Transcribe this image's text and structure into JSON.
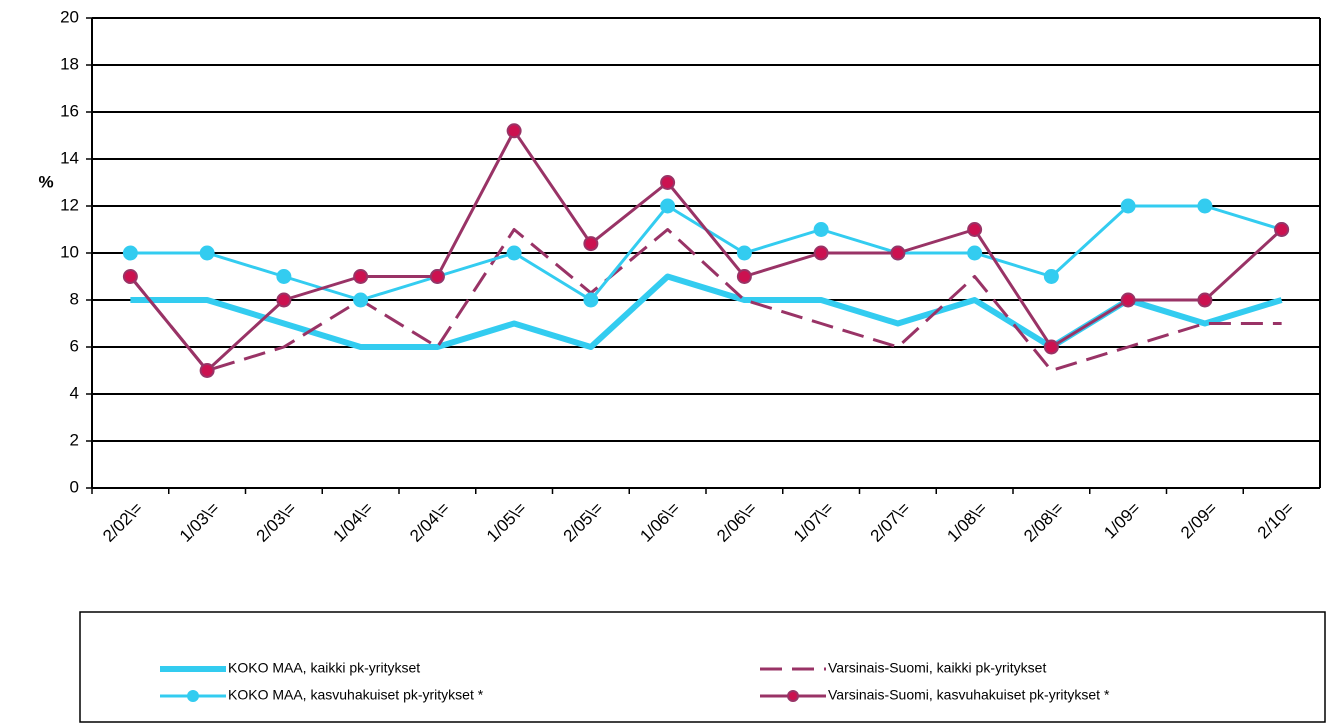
{
  "chart_data": {
    "type": "line",
    "y_label": "%",
    "categories": [
      "2/02\\=",
      "1/03\\=",
      "2/03\\=",
      "1/04\\=",
      "2/04\\=",
      "1/05\\=",
      "2/05\\=",
      "1/06\\=",
      "2/06\\=",
      "1/07\\=",
      "2/07\\=",
      "1/08\\=",
      "2/08\\=",
      "1/09=",
      "2/09=",
      "2/10="
    ],
    "series": [
      {
        "name": "KOKO MAA,  kaikki pk-yritykset",
        "color": "#33ccf0",
        "width": 6,
        "dash": false,
        "marker": false,
        "values": [
          8,
          8,
          7,
          6,
          6,
          7,
          6,
          9,
          8,
          8,
          7,
          8,
          6,
          8,
          7,
          8
        ]
      },
      {
        "name": "Varsinais-Suomi, kaikki pk-yritykset",
        "color": "#993366",
        "width": 3,
        "dash": true,
        "marker": false,
        "values": [
          9,
          5,
          6,
          8,
          6,
          11,
          8.3,
          11,
          8,
          7,
          6,
          9,
          5,
          6,
          7,
          7
        ]
      },
      {
        "name": "KOKO MAA,  kasvuhakuiset pk-yritykset *",
        "color": "#33ccf0",
        "width": 3,
        "dash": false,
        "marker": true,
        "marker_color": "#33ccf0",
        "values": [
          10,
          10,
          9,
          8,
          9,
          10,
          8,
          12,
          10,
          11,
          10,
          10,
          9,
          12,
          12,
          11
        ]
      },
      {
        "name": "Varsinais-Suomi, kasvuhakuiset pk-yritykset *",
        "color": "#993366",
        "width": 3,
        "dash": false,
        "marker": true,
        "marker_color": "#cc1150",
        "values": [
          9,
          5,
          8,
          9,
          9,
          15.2,
          10.4,
          13,
          9,
          10,
          10,
          11,
          6,
          8,
          8,
          11
        ]
      }
    ],
    "ylim": [
      0,
      20
    ],
    "yticks": [
      0,
      2,
      4,
      6,
      8,
      10,
      12,
      14,
      16,
      18,
      20
    ],
    "grid": true,
    "legend": "bottom"
  }
}
